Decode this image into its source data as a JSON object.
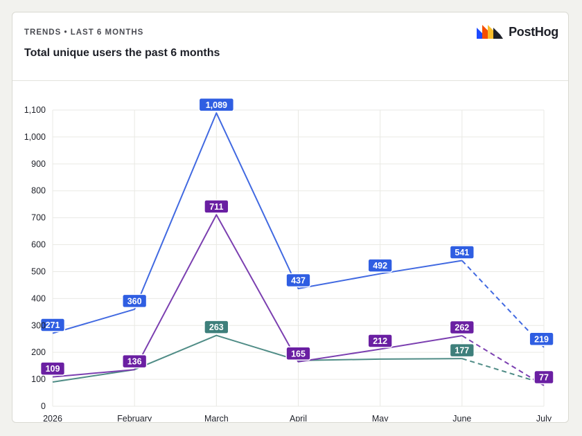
{
  "card": {
    "subtitle": "TRENDS • LAST 6 MONTHS",
    "title": "Total unique users the past 6 months",
    "brand": "PostHog"
  },
  "colors": {
    "blue": "#2f5ee2",
    "purple": "#6a1fa2",
    "teal": "#3e7f7b",
    "grid": "#e9e9e4",
    "axis_text": "#1d1f27"
  },
  "chart_data": {
    "type": "line",
    "categories": [
      "2026",
      "February",
      "March",
      "April",
      "May",
      "June",
      "July"
    ],
    "y_tick_labels": [
      "0",
      "100",
      "200",
      "300",
      "400",
      "500",
      "600",
      "700",
      "800",
      "900",
      "1,000",
      "1,100"
    ],
    "ylim": [
      0,
      1100
    ],
    "grid": true,
    "series": [
      {
        "color": "#2f5ee2",
        "line_color": "#4169e1",
        "values": [
          271,
          360,
          1089,
          437,
          492,
          541,
          219
        ],
        "labels": [
          "271",
          "360",
          "1,089",
          "437",
          "492",
          "541",
          "219"
        ],
        "dashed_from_index": 5
      },
      {
        "color": "#6a1fa2",
        "line_color": "#7b3fb0",
        "values": [
          109,
          136,
          711,
          165,
          212,
          262,
          77
        ],
        "labels": [
          "109",
          "136",
          "711",
          "165",
          "212",
          "262",
          "77"
        ],
        "dashed_from_index": 5
      },
      {
        "color": "#3e7f7b",
        "line_color": "#4f8c86",
        "values": [
          90,
          136,
          263,
          170,
          175,
          177,
          84
        ],
        "labels": [
          "",
          "",
          "263",
          "",
          "",
          "177",
          ""
        ],
        "dashed_from_index": 5
      }
    ]
  }
}
